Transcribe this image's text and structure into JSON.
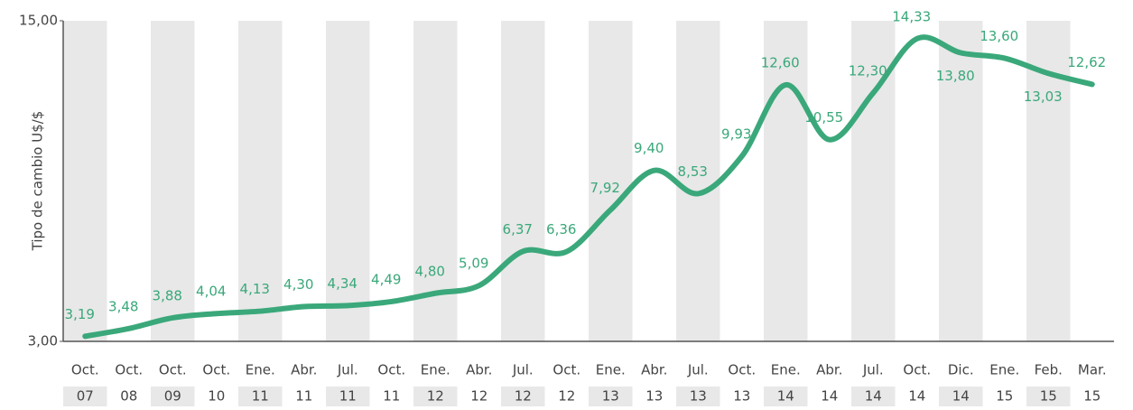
{
  "chart_data": {
    "type": "line",
    "y_label": "Tipo de cambio U$/$",
    "categories": [
      [
        "Oct.",
        "07"
      ],
      [
        "Oct.",
        "08"
      ],
      [
        "Oct.",
        "09"
      ],
      [
        "Oct.",
        "10"
      ],
      [
        "Ene.",
        "11"
      ],
      [
        "Abr.",
        "11"
      ],
      [
        "Jul.",
        "11"
      ],
      [
        "Oct.",
        "11"
      ],
      [
        "Ene.",
        "12"
      ],
      [
        "Abr.",
        "12"
      ],
      [
        "Jul.",
        "12"
      ],
      [
        "Oct.",
        "12"
      ],
      [
        "Ene.",
        "13"
      ],
      [
        "Abr.",
        "13"
      ],
      [
        "Jul.",
        "13"
      ],
      [
        "Oct.",
        "13"
      ],
      [
        "Ene.",
        "14"
      ],
      [
        "Abr.",
        "14"
      ],
      [
        "Jul.",
        "14"
      ],
      [
        "Oct.",
        "14"
      ],
      [
        "Dic.",
        "14"
      ],
      [
        "Ene.",
        "15"
      ],
      [
        "Feb.",
        "15"
      ],
      [
        "Mar.",
        "15"
      ]
    ],
    "values": [
      3.19,
      3.48,
      3.88,
      4.04,
      4.13,
      4.3,
      4.34,
      4.49,
      4.8,
      5.09,
      6.37,
      6.36,
      7.92,
      9.4,
      8.53,
      9.93,
      12.6,
      10.55,
      12.3,
      14.33,
      13.8,
      13.6,
      13.03,
      12.62
    ],
    "value_labels": [
      "3,19",
      "3,48",
      "3,88",
      "4,04",
      "4,13",
      "4,30",
      "4,34",
      "4,49",
      "4,80",
      "5,09",
      "6,37",
      "6,36",
      "7,92",
      "9,40",
      "8,53",
      "9,93",
      "12,60",
      "10,55",
      "12,30",
      "14,33",
      "13,80",
      "13,60",
      "13,03",
      "12,62"
    ],
    "color": "#3aa87a",
    "ylim": [
      3,
      15
    ],
    "yticks": [
      {
        "value": 3,
        "label": "3,00"
      },
      {
        "value": 15,
        "label": "15,00"
      }
    ]
  }
}
